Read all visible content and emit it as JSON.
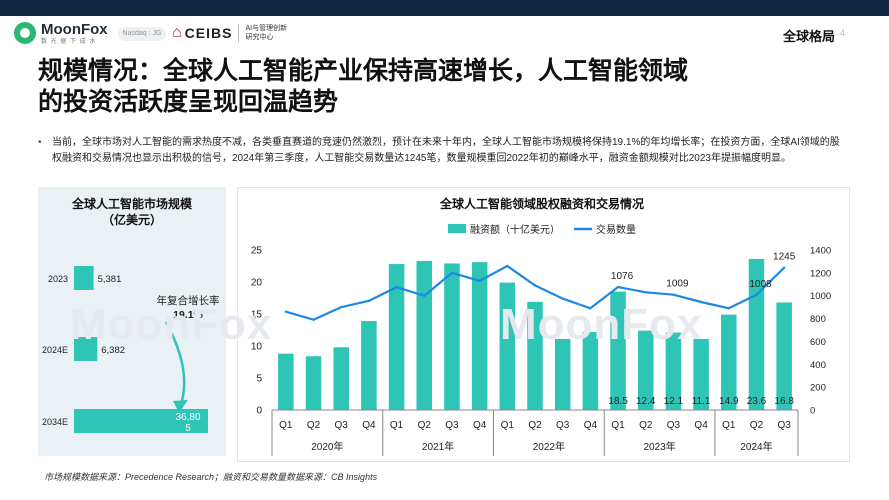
{
  "header": {
    "logo_name": "MoonFox",
    "logo_sub": "数 光 据 下 成 水",
    "nasdaq_badge": "Nasdaq : JG",
    "partner_name": "CEIBS",
    "partner_sub_line1": "AI与管理创新",
    "partner_sub_line2": "研究中心",
    "section": "全球格局",
    "page_number": "4"
  },
  "title": {
    "line1": "规模情况：全球人工智能产业保持高速增长，人工智能领域",
    "line2": "的投资活跃度呈现回温趋势"
  },
  "bullet": {
    "marker": "•",
    "text": "当前，全球市场对人工智能的需求热度不减，各类垂直赛道的竞速仍然激烈，预计在未来十年内，全球人工智能市场规模将保持19.1%的年均增长率；在投资方面，全球AI领域的股权融资和交易情况也显示出积极的信号，2024年第三季度，人工智能交易数量达1245笔，数量规模重回2022年初的巅峰水平，融资金额规模对比2023年提振幅度明显。"
  },
  "watermark": "MoonFox",
  "footer": "市场规模数据来源：Precedence Research；融资和交易数量数据来源：CB Insights",
  "colors": {
    "bar": "#2ec4b6",
    "line": "#1e88e5",
    "panel_bg": "#e9f1f5"
  },
  "chart_data": [
    {
      "type": "bar",
      "orientation": "horizontal",
      "title": "全球人工智能市场规模",
      "subtitle": "（亿美元）",
      "categories": [
        "2023",
        "2024E",
        "2034E"
      ],
      "values": [
        5381,
        6382,
        36805
      ],
      "value_labels": [
        "5,381",
        "6,382",
        "36,805"
      ],
      "annotation_label": "年复合增长率",
      "annotation_value": "19.1%"
    },
    {
      "type": "bar",
      "title": "全球人工智能领域股权融资和交易情况",
      "categories": [
        "Q1",
        "Q2",
        "Q3",
        "Q4",
        "Q1",
        "Q2",
        "Q3",
        "Q4",
        "Q1",
        "Q2",
        "Q3",
        "Q4",
        "Q1",
        "Q2",
        "Q3",
        "Q4",
        "Q1",
        "Q2",
        "Q3"
      ],
      "groups": [
        {
          "label": "2020年",
          "count": 4
        },
        {
          "label": "2021年",
          "count": 4
        },
        {
          "label": "2022年",
          "count": 4
        },
        {
          "label": "2023年",
          "count": 4
        },
        {
          "label": "2024年",
          "count": 3
        }
      ],
      "series": [
        {
          "name": "融资额（十亿美元）",
          "type": "bar",
          "axis": "left",
          "values": [
            8.8,
            8.4,
            9.8,
            13.9,
            22.8,
            23.3,
            22.9,
            23.1,
            19.9,
            16.9,
            11.1,
            12.2,
            18.5,
            12.4,
            12.1,
            11.1,
            14.9,
            23.6,
            16.8
          ]
        },
        {
          "name": "交易数量",
          "type": "line",
          "axis": "right",
          "values": [
            860,
            790,
            900,
            955,
            1075,
            1000,
            1200,
            1130,
            1260,
            1090,
            975,
            890,
            1076,
            1030,
            1009,
            945,
            890,
            1008,
            1245
          ]
        }
      ],
      "bar_value_labels": [
        {
          "index": 12,
          "text": "18.5"
        },
        {
          "index": 13,
          "text": "12.4"
        },
        {
          "index": 14,
          "text": "12.1"
        },
        {
          "index": 15,
          "text": "11.1"
        },
        {
          "index": 16,
          "text": "14.9"
        },
        {
          "index": 17,
          "text": "23.6"
        },
        {
          "index": 18,
          "text": "16.8"
        }
      ],
      "line_value_labels": [
        {
          "index": 12,
          "text": "1076"
        },
        {
          "index": 14,
          "text": "1009"
        },
        {
          "index": 17,
          "text": "1008"
        },
        {
          "index": 18,
          "text": "1245"
        }
      ],
      "ylim_left": [
        0,
        25
      ],
      "yticks_left": [
        0,
        5,
        10,
        15,
        20,
        25
      ],
      "ylim_right": [
        0,
        1400
      ],
      "yticks_right": [
        0,
        200,
        400,
        600,
        800,
        1000,
        1200,
        1400
      ],
      "legend_position": "top-center",
      "grid": false
    }
  ]
}
